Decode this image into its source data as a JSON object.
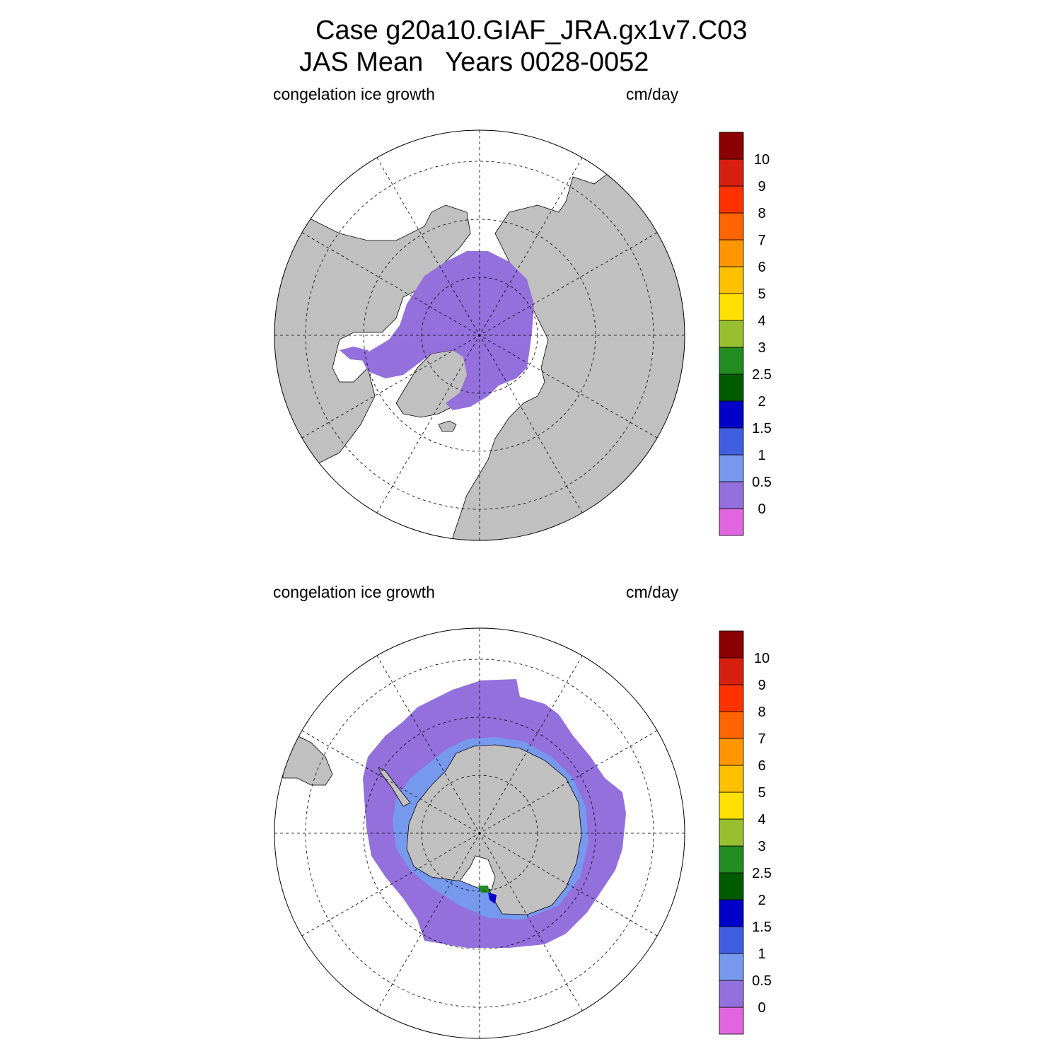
{
  "title": {
    "line1": "Case g20a10.GIAF_JRA.gx1v7.C03",
    "line2": "JAS Mean   Years 0028-0052"
  },
  "panels": [
    {
      "id": "north",
      "left_label": "congelation ice growth",
      "right_label": "cm/day"
    },
    {
      "id": "south",
      "left_label": "congelation ice growth",
      "right_label": "cm/day"
    }
  ],
  "colorbar": {
    "labels": [
      "0",
      "0.5",
      "1",
      "1.5",
      "2",
      "2.5",
      "3",
      "4",
      "5",
      "6",
      "7",
      "8",
      "9",
      "10"
    ],
    "colors": [
      "#e066e0",
      "#9370db",
      "#7699ee",
      "#3f5fe0",
      "#0000c8",
      "#005a00",
      "#228b22",
      "#98bf30",
      "#ffe000",
      "#ffc000",
      "#ff9600",
      "#ff6400",
      "#ff3200",
      "#d82010",
      "#8b0000"
    ]
  },
  "colors": {
    "land": "#c0c0c0",
    "ice": "#9370db",
    "ocean": "#ffffff"
  }
}
